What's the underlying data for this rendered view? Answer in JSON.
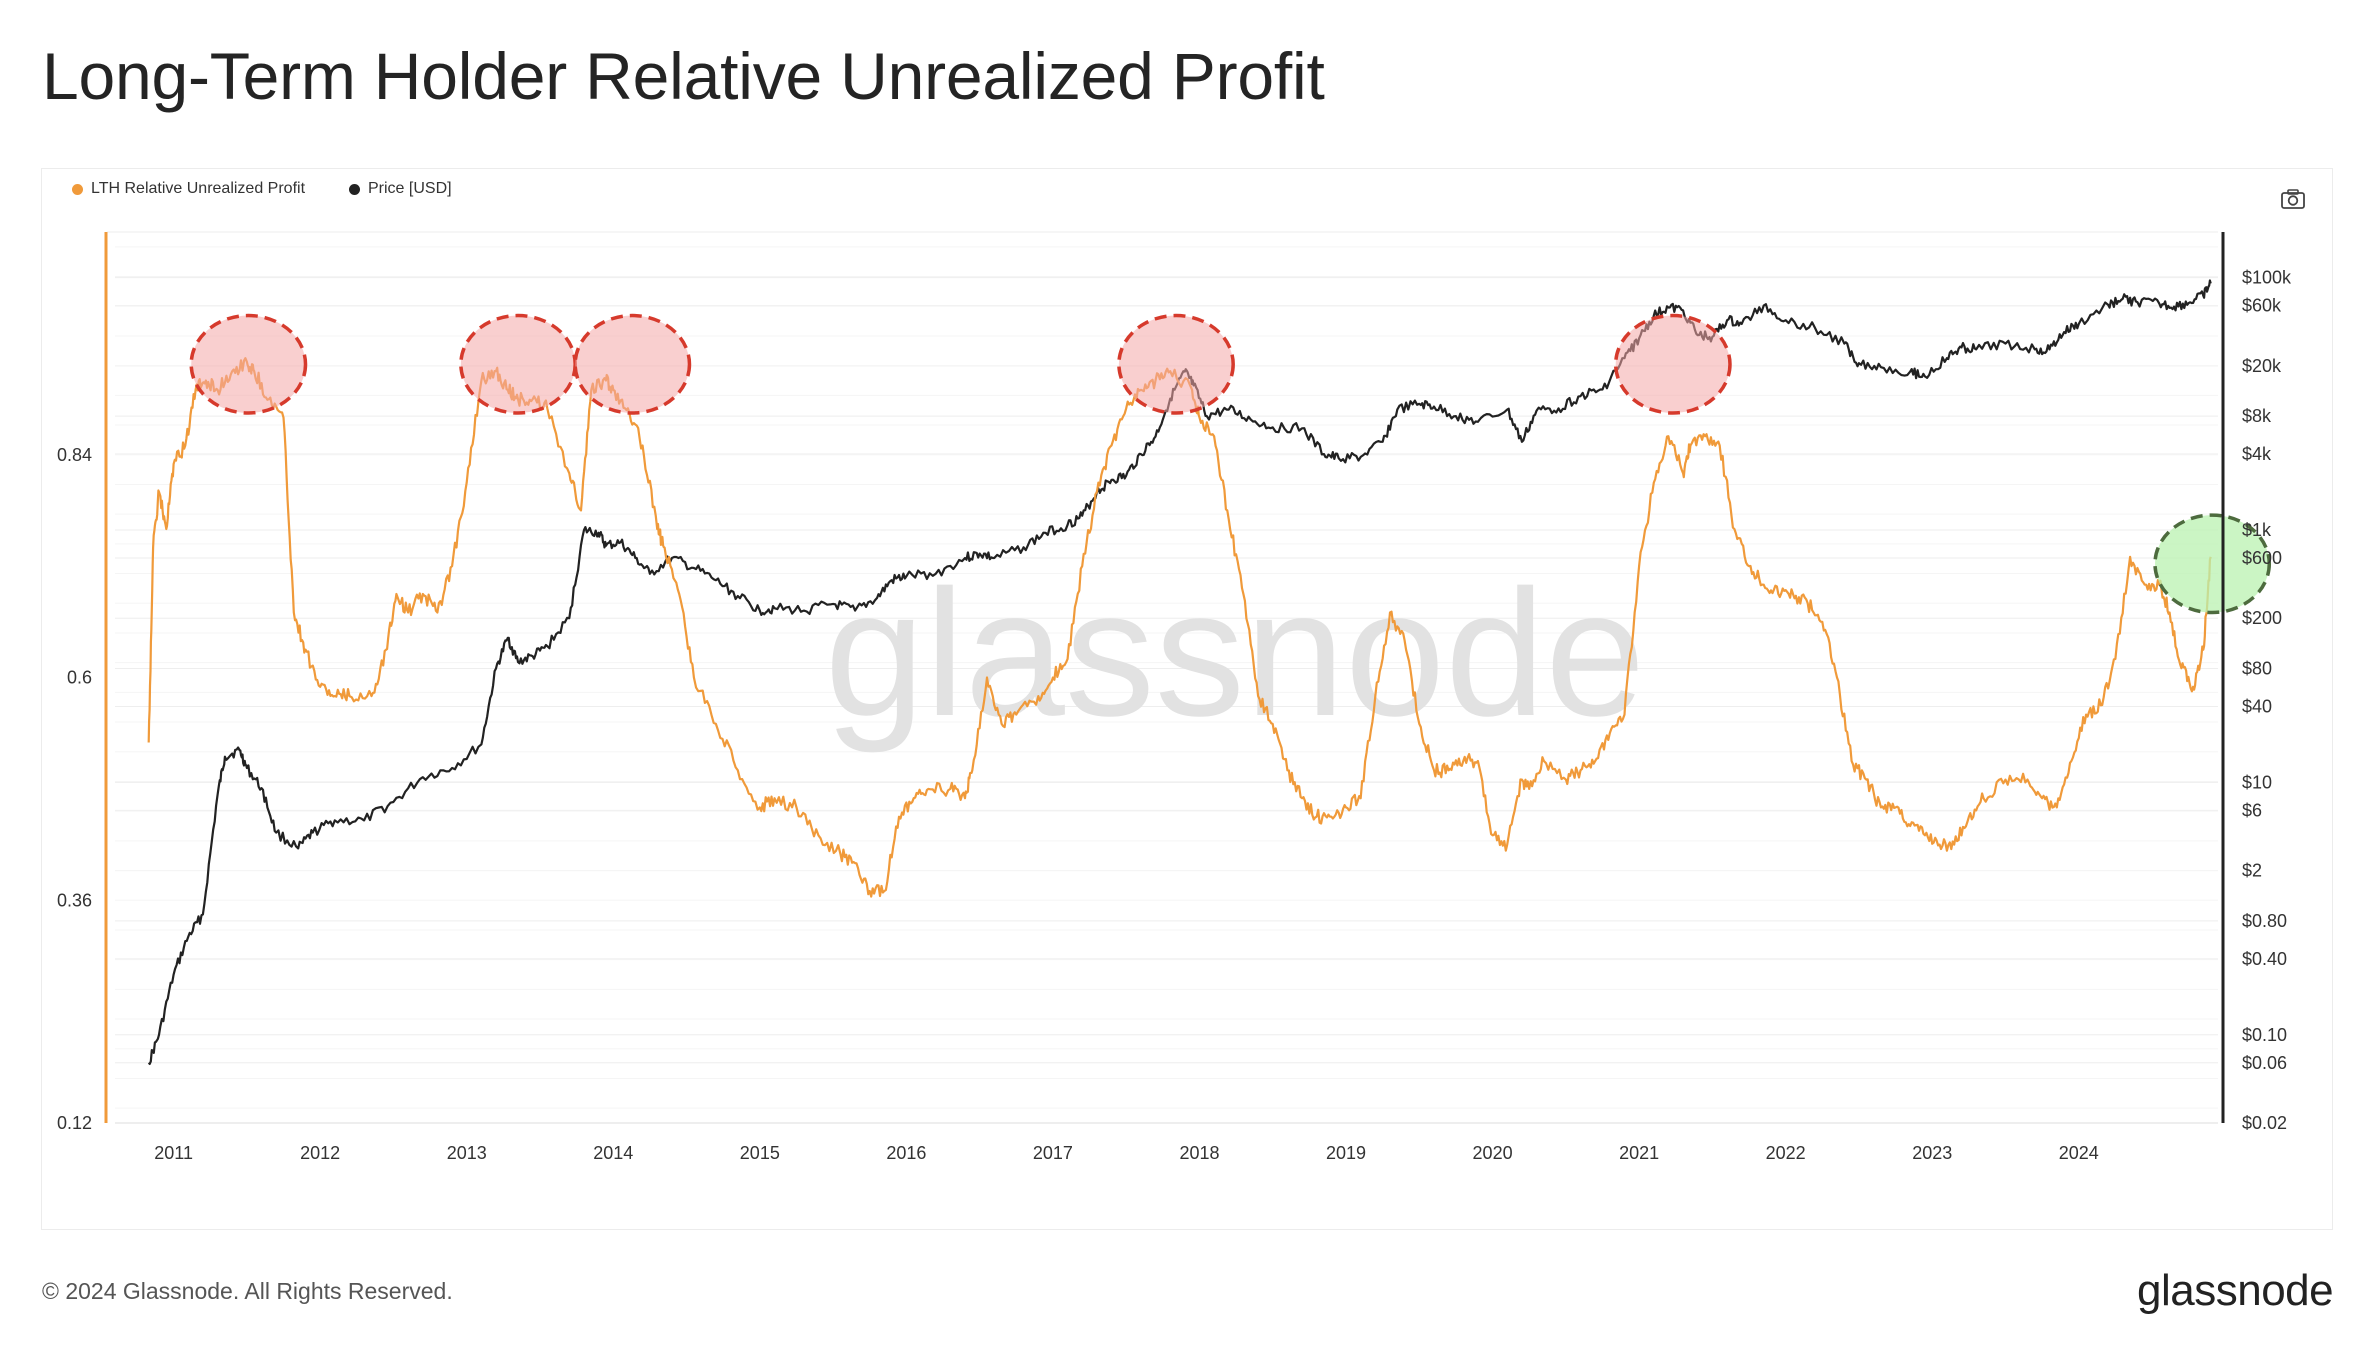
{
  "title": "Long-Term Holder Relative Unrealized Profit",
  "footer": {
    "copyright": "© 2024 Glassnode. All Rights Reserved.",
    "logo": "glassnode"
  },
  "watermark": "glassnode",
  "toolbar": {
    "camera_icon": "camera-icon"
  },
  "colors": {
    "rup": "#f09a3a",
    "price": "#222222",
    "red_zone": "#f4a7a7",
    "red_border": "#d63a2c",
    "green_zone": "#b9f2b0",
    "green_border": "#4d6b3e",
    "axis_bar": "#222222"
  },
  "chart_data": {
    "type": "line",
    "title": "Long-Term Holder Relative Unrealized Profit",
    "legend_position": "top-left",
    "series": [
      {
        "name": "LTH Relative Unrealized Profit",
        "axis": "left",
        "color": "#f09a3a",
        "x": [
          2010.83,
          2010.86,
          2010.9,
          2010.95,
          2011.0,
          2011.08,
          2011.15,
          2011.22,
          2011.3,
          2011.4,
          2011.5,
          2011.55,
          2011.65,
          2011.75,
          2011.82,
          2011.9,
          2012.0,
          2012.1,
          2012.2,
          2012.35,
          2012.45,
          2012.52,
          2012.6,
          2012.7,
          2012.8,
          2012.9,
          2013.0,
          2013.1,
          2013.2,
          2013.28,
          2013.35,
          2013.45,
          2013.55,
          2013.7,
          2013.78,
          2013.85,
          2013.95,
          2014.0,
          2014.1,
          2014.2,
          2014.3,
          2014.35,
          2014.45,
          2014.55,
          2014.7,
          2014.85,
          2015.0,
          2015.1,
          2015.25,
          2015.4,
          2015.55,
          2015.65,
          2015.75,
          2015.85,
          2015.95,
          2016.05,
          2016.15,
          2016.3,
          2016.4,
          2016.45,
          2016.55,
          2016.65,
          2016.75,
          2016.9,
          2017.0,
          2017.1,
          2017.2,
          2017.3,
          2017.4,
          2017.5,
          2017.6,
          2017.7,
          2017.8,
          2017.95,
          2018.0,
          2018.1,
          2018.2,
          2018.3,
          2018.4,
          2018.5,
          2018.6,
          2018.7,
          2018.8,
          2018.9,
          2019.0,
          2019.1,
          2019.2,
          2019.3,
          2019.4,
          2019.5,
          2019.6,
          2019.7,
          2019.8,
          2019.9,
          2020.0,
          2020.1,
          2020.2,
          2020.25,
          2020.35,
          2020.5,
          2020.6,
          2020.7,
          2020.8,
          2020.9,
          2021.0,
          2021.1,
          2021.2,
          2021.3,
          2021.35,
          2021.45,
          2021.55,
          2021.65,
          2021.75,
          2021.85,
          2021.95,
          2022.05,
          2022.15,
          2022.25,
          2022.35,
          2022.45,
          2022.55,
          2022.65,
          2022.75,
          2022.85,
          2022.95,
          2023.05,
          2023.15,
          2023.25,
          2023.35,
          2023.5,
          2023.65,
          2023.75,
          2023.85,
          2023.95,
          2024.05,
          2024.15,
          2024.25,
          2024.35,
          2024.45,
          2024.55,
          2024.62,
          2024.7,
          2024.78,
          2024.85,
          2024.9
        ],
        "values": [
          0.53,
          0.74,
          0.8,
          0.76,
          0.83,
          0.85,
          0.91,
          0.92,
          0.91,
          0.93,
          0.94,
          0.93,
          0.9,
          0.88,
          0.67,
          0.63,
          0.59,
          0.58,
          0.58,
          0.58,
          0.63,
          0.69,
          0.67,
          0.69,
          0.67,
          0.72,
          0.81,
          0.92,
          0.93,
          0.91,
          0.9,
          0.9,
          0.89,
          0.82,
          0.78,
          0.91,
          0.92,
          0.91,
          0.89,
          0.85,
          0.76,
          0.74,
          0.69,
          0.6,
          0.55,
          0.5,
          0.46,
          0.47,
          0.46,
          0.43,
          0.41,
          0.4,
          0.37,
          0.37,
          0.45,
          0.47,
          0.48,
          0.48,
          0.47,
          0.5,
          0.6,
          0.55,
          0.56,
          0.58,
          0.6,
          0.62,
          0.72,
          0.8,
          0.85,
          0.89,
          0.91,
          0.92,
          0.93,
          0.91,
          0.88,
          0.86,
          0.77,
          0.69,
          0.58,
          0.55,
          0.5,
          0.47,
          0.45,
          0.45,
          0.46,
          0.47,
          0.58,
          0.67,
          0.64,
          0.55,
          0.5,
          0.5,
          0.51,
          0.51,
          0.43,
          0.42,
          0.49,
          0.48,
          0.51,
          0.49,
          0.5,
          0.51,
          0.54,
          0.56,
          0.72,
          0.81,
          0.86,
          0.82,
          0.85,
          0.86,
          0.85,
          0.76,
          0.72,
          0.7,
          0.69,
          0.69,
          0.68,
          0.66,
          0.6,
          0.51,
          0.49,
          0.46,
          0.46,
          0.44,
          0.43,
          0.42,
          0.42,
          0.45,
          0.47,
          0.49,
          0.49,
          0.47,
          0.46,
          0.51,
          0.56,
          0.57,
          0.62,
          0.73,
          0.7,
          0.7,
          0.67,
          0.61,
          0.59,
          0.63,
          0.73
        ]
      },
      {
        "name": "Price [USD]",
        "axis": "right",
        "color": "#222222",
        "x": [
          2010.83,
          2010.9,
          2011.0,
          2011.1,
          2011.2,
          2011.3,
          2011.35,
          2011.45,
          2011.5,
          2011.6,
          2011.7,
          2011.85,
          2011.95,
          2012.1,
          2012.3,
          2012.5,
          2012.7,
          2012.9,
          2013.1,
          2013.2,
          2013.28,
          2013.35,
          2013.45,
          2013.55,
          2013.7,
          2013.8,
          2013.9,
          2013.95,
          2014.05,
          2014.15,
          2014.25,
          2014.4,
          2014.55,
          2014.7,
          2014.85,
          2015.0,
          2015.1,
          2015.3,
          2015.5,
          2015.65,
          2015.8,
          2015.9,
          2016.0,
          2016.2,
          2016.4,
          2016.5,
          2016.6,
          2016.8,
          2016.95,
          2017.1,
          2017.2,
          2017.3,
          2017.4,
          2017.5,
          2017.6,
          2017.7,
          2017.8,
          2017.9,
          2017.96,
          2018.05,
          2018.2,
          2018.35,
          2018.5,
          2018.7,
          2018.85,
          2018.95,
          2019.1,
          2019.25,
          2019.35,
          2019.5,
          2019.6,
          2019.75,
          2019.9,
          2020.1,
          2020.2,
          2020.3,
          2020.45,
          2020.6,
          2020.75,
          2020.9,
          2021.0,
          2021.1,
          2021.2,
          2021.3,
          2021.4,
          2021.5,
          2021.6,
          2021.7,
          2021.85,
          2022.0,
          2022.2,
          2022.4,
          2022.5,
          2022.65,
          2022.85,
          2022.95,
          2023.1,
          2023.2,
          2023.3,
          2023.5,
          2023.7,
          2023.8,
          2023.9,
          2024.0,
          2024.2,
          2024.3,
          2024.4,
          2024.55,
          2024.65,
          2024.75,
          2024.85,
          2024.9
        ],
        "values": [
          0.06,
          0.1,
          0.3,
          0.6,
          0.9,
          8,
          16,
          18,
          13,
          9,
          4,
          3,
          4,
          5,
          5,
          7,
          11,
          13,
          20,
          80,
          140,
          90,
          100,
          120,
          200,
          1000,
          950,
          750,
          800,
          600,
          450,
          600,
          500,
          400,
          300,
          230,
          240,
          230,
          260,
          230,
          290,
          400,
          430,
          450,
          600,
          650,
          600,
          730,
          950,
          1100,
          1300,
          2000,
          2500,
          2700,
          4000,
          5500,
          11000,
          18000,
          14000,
          8000,
          9000,
          7500,
          6500,
          6400,
          4000,
          3700,
          3800,
          5000,
          9000,
          10000,
          9500,
          8000,
          7200,
          9000,
          5000,
          8800,
          9200,
          11500,
          13000,
          23000,
          33000,
          50000,
          58000,
          55000,
          35000,
          34000,
          46000,
          43000,
          60000,
          46000,
          40000,
          30000,
          21000,
          19500,
          18000,
          16500,
          23000,
          28000,
          27000,
          30000,
          27000,
          27000,
          37000,
          43000,
          61000,
          68000,
          64000,
          62000,
          59000,
          63000,
          72000,
          90000
        ]
      }
    ],
    "x_ticks": [
      "2011",
      "2012",
      "2013",
      "2014",
      "2015",
      "2016",
      "2017",
      "2018",
      "2019",
      "2020",
      "2021",
      "2022",
      "2023",
      "2024"
    ],
    "y_left_ticks": [
      "0.84",
      "0.6",
      "0.36",
      "0.12"
    ],
    "y_left_range": [
      0.12,
      1.08
    ],
    "y_right_ticks": [
      "$100k",
      "$60k",
      "$20k",
      "$8k",
      "$4k",
      "$1k",
      "$600",
      "$200",
      "$80",
      "$40",
      "$10",
      "$6",
      "$2",
      "$0.80",
      "$0.40",
      "$0.10",
      "$0.06",
      "$0.02"
    ],
    "y_right_scale": "log",
    "y_right_range": [
      0.02,
      230000
    ],
    "x_range": [
      2010.6,
      2024.95
    ],
    "grid": true,
    "annotations": [
      {
        "type": "ellipse",
        "style": "red",
        "x_range": [
          2011.12,
          2011.9
        ],
        "y_range": [
          0.885,
          0.99
        ]
      },
      {
        "type": "ellipse",
        "style": "red",
        "x_range": [
          2012.96,
          2013.74
        ],
        "y_range": [
          0.885,
          0.99
        ]
      },
      {
        "type": "ellipse",
        "style": "red",
        "x_range": [
          2013.74,
          2014.52
        ],
        "y_range": [
          0.885,
          0.99
        ]
      },
      {
        "type": "ellipse",
        "style": "red",
        "x_range": [
          2017.45,
          2018.23
        ],
        "y_range": [
          0.885,
          0.99
        ]
      },
      {
        "type": "ellipse",
        "style": "red",
        "x_range": [
          2020.84,
          2021.62
        ],
        "y_range": [
          0.885,
          0.99
        ]
      },
      {
        "type": "ellipse",
        "style": "green",
        "x_range": [
          2024.52,
          2025.3
        ],
        "y_range": [
          0.67,
          0.775
        ]
      }
    ]
  }
}
